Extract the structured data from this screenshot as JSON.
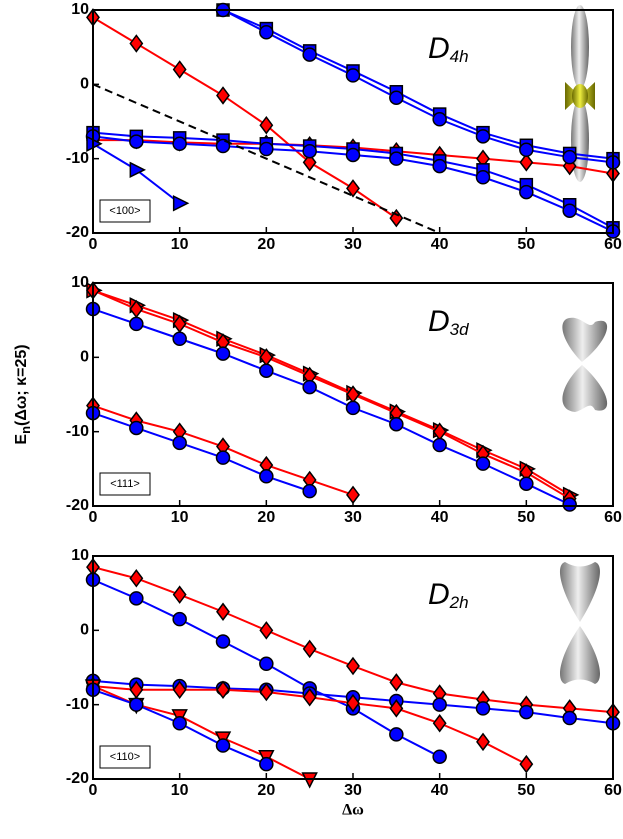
{
  "chart_data": [
    {
      "type": "line",
      "xlim": [
        0,
        60
      ],
      "ylim": [
        -20,
        10
      ],
      "xticks": [
        0,
        10,
        20,
        30,
        40,
        50,
        60
      ],
      "yticks": [
        10,
        0,
        -10,
        -20
      ],
      "annotation": {
        "symbol": "D",
        "subscript": "4h"
      },
      "box_label": "<100>",
      "series": [
        {
          "color": "#ff0000",
          "marker": "diamond",
          "x": [
            0,
            5,
            10,
            15,
            20,
            25,
            30,
            35
          ],
          "values": [
            9,
            5.5,
            2,
            -1.5,
            -5.5,
            -10.5,
            -14,
            -18
          ]
        },
        {
          "color": "#ff0000",
          "marker": "diamond",
          "x": [
            0,
            5,
            10,
            15,
            20,
            25,
            30,
            35,
            40,
            45,
            50,
            55,
            60
          ],
          "values": [
            -7.5,
            -7.5,
            -7.8,
            -8,
            -8,
            -8.2,
            -8.5,
            -9,
            -9.5,
            -10,
            -10.5,
            -11,
            -12
          ]
        },
        {
          "color": "#0000ff",
          "marker": "square",
          "x": [
            15,
            20,
            25,
            30,
            35,
            40,
            45,
            50,
            55,
            60
          ],
          "values": [
            10,
            7.5,
            4.5,
            1.8,
            -1,
            -4,
            -6.5,
            -8.2,
            -9.3,
            -10
          ]
        },
        {
          "color": "#0000ff",
          "marker": "circle",
          "x": [
            15,
            20,
            25,
            30,
            35,
            40,
            45,
            50,
            55,
            60
          ],
          "values": [
            10,
            7,
            4,
            1.2,
            -1.8,
            -4.7,
            -7,
            -8.8,
            -9.8,
            -10.5
          ]
        },
        {
          "color": "#0000ff",
          "marker": "square",
          "x": [
            0,
            5,
            10,
            15,
            20,
            25,
            30,
            35,
            40,
            45,
            50,
            55,
            60
          ],
          "values": [
            -6.5,
            -7,
            -7.2,
            -7.5,
            -8,
            -8.3,
            -8.7,
            -9.3,
            -10.3,
            -11.5,
            -13.5,
            -16.2,
            -19.3
          ]
        },
        {
          "color": "#0000ff",
          "marker": "circle",
          "x": [
            0,
            5,
            10,
            15,
            20,
            25,
            30,
            35,
            40,
            45,
            50,
            55,
            60
          ],
          "values": [
            -7,
            -7.7,
            -8,
            -8.3,
            -8.7,
            -9,
            -9.5,
            -10,
            -11,
            -12.5,
            -14.5,
            -17,
            -19.8
          ]
        },
        {
          "color": "#0000ff",
          "marker": "triangle-right",
          "x": [
            0,
            5,
            10
          ],
          "values": [
            -8,
            -11.5,
            -16
          ]
        },
        {
          "color": "#000000",
          "dash": true,
          "x": [
            0,
            40
          ],
          "values": [
            0,
            -20
          ]
        }
      ]
    },
    {
      "type": "line",
      "xlim": [
        0,
        60
      ],
      "ylim": [
        -20,
        10
      ],
      "xticks": [
        0,
        10,
        20,
        30,
        40,
        50,
        60
      ],
      "yticks": [
        10,
        0,
        -10,
        -20
      ],
      "ylabel": {
        "main": "E",
        "subscript": "n",
        "rest": "(Δω; κ=25)"
      },
      "annotation": {
        "symbol": "D",
        "subscript": "3d"
      },
      "box_label": "<111>",
      "series": [
        {
          "color": "#ff0000",
          "marker": "triangle-right",
          "x": [
            0,
            5,
            10,
            15,
            20,
            25,
            30,
            35,
            40,
            45,
            50,
            55
          ],
          "values": [
            9,
            7,
            5,
            2.5,
            0.3,
            -2.2,
            -4.8,
            -7.3,
            -9.8,
            -12.5,
            -15,
            -18.5
          ]
        },
        {
          "color": "#ff0000",
          "marker": "diamond",
          "x": [
            0,
            5,
            10,
            15,
            20,
            25,
            30,
            35,
            40,
            45,
            50,
            55
          ],
          "values": [
            9,
            6.5,
            4.5,
            2,
            0,
            -2.5,
            -5,
            -7.5,
            -10,
            -13,
            -15.5,
            -19
          ]
        },
        {
          "color": "#0000ff",
          "marker": "circle",
          "x": [
            0,
            5,
            10,
            15,
            20,
            25,
            30,
            35,
            40,
            45,
            50,
            55
          ],
          "values": [
            6.5,
            4.5,
            2.5,
            0.5,
            -1.8,
            -4,
            -6.8,
            -9,
            -11.8,
            -14.3,
            -17,
            -19.8
          ]
        },
        {
          "color": "#ff0000",
          "marker": "diamond",
          "x": [
            0,
            5,
            10,
            15,
            20,
            25,
            30
          ],
          "values": [
            -6.5,
            -8.5,
            -10,
            -12,
            -14.5,
            -16.5,
            -18.5
          ]
        },
        {
          "color": "#0000ff",
          "marker": "circle",
          "x": [
            0,
            5,
            10,
            15,
            20,
            25
          ],
          "values": [
            -7.5,
            -9.5,
            -11.5,
            -13.5,
            -16,
            -18
          ]
        }
      ]
    },
    {
      "type": "line",
      "xlim": [
        0,
        60
      ],
      "ylim": [
        -20,
        10
      ],
      "xticks": [
        0,
        10,
        20,
        30,
        40,
        50,
        60
      ],
      "yticks": [
        10,
        0,
        -10,
        -20
      ],
      "xlabel": "Δω",
      "annotation": {
        "symbol": "D",
        "subscript": "2h"
      },
      "box_label": "<110>",
      "series": [
        {
          "color": "#ff0000",
          "marker": "diamond",
          "x": [
            0,
            5,
            10,
            15,
            20,
            25,
            30,
            35,
            40,
            45,
            50,
            55,
            60
          ],
          "values": [
            8.5,
            7,
            4.8,
            2.5,
            0,
            -2.5,
            -4.8,
            -7,
            -8.5,
            -9.3,
            -10,
            -10.5,
            -11
          ]
        },
        {
          "color": "#0000ff",
          "marker": "circle",
          "x": [
            0,
            5,
            10,
            15,
            20,
            25,
            30,
            35,
            40
          ],
          "values": [
            6.8,
            4.3,
            1.5,
            -1.5,
            -4.5,
            -7.8,
            -10.5,
            -14,
            -17
          ]
        },
        {
          "color": "#0000ff",
          "marker": "circle",
          "x": [
            0,
            5,
            10,
            15,
            20,
            25,
            30,
            35,
            40,
            45,
            50,
            55,
            60
          ],
          "values": [
            -6.8,
            -7.3,
            -7.5,
            -7.8,
            -8,
            -8.5,
            -9,
            -9.5,
            -10,
            -10.5,
            -11,
            -11.8,
            -12.5
          ]
        },
        {
          "color": "#ff0000",
          "marker": "diamond",
          "x": [
            0,
            5,
            10,
            15,
            20,
            25,
            30,
            35,
            40,
            45,
            50
          ],
          "values": [
            -7.5,
            -8,
            -8,
            -8,
            -8.3,
            -9,
            -9.8,
            -10.5,
            -12.5,
            -15,
            -18
          ]
        },
        {
          "color": "#ff0000",
          "marker": "triangle-down",
          "x": [
            0,
            5,
            10,
            15,
            20,
            25
          ],
          "values": [
            -7.5,
            -10,
            -11.5,
            -14.5,
            -17,
            -20
          ]
        },
        {
          "color": "#0000ff",
          "marker": "circle",
          "x": [
            0,
            5,
            10,
            15,
            20
          ],
          "values": [
            -8,
            -10,
            -12.5,
            -15.5,
            -18
          ]
        }
      ]
    }
  ]
}
